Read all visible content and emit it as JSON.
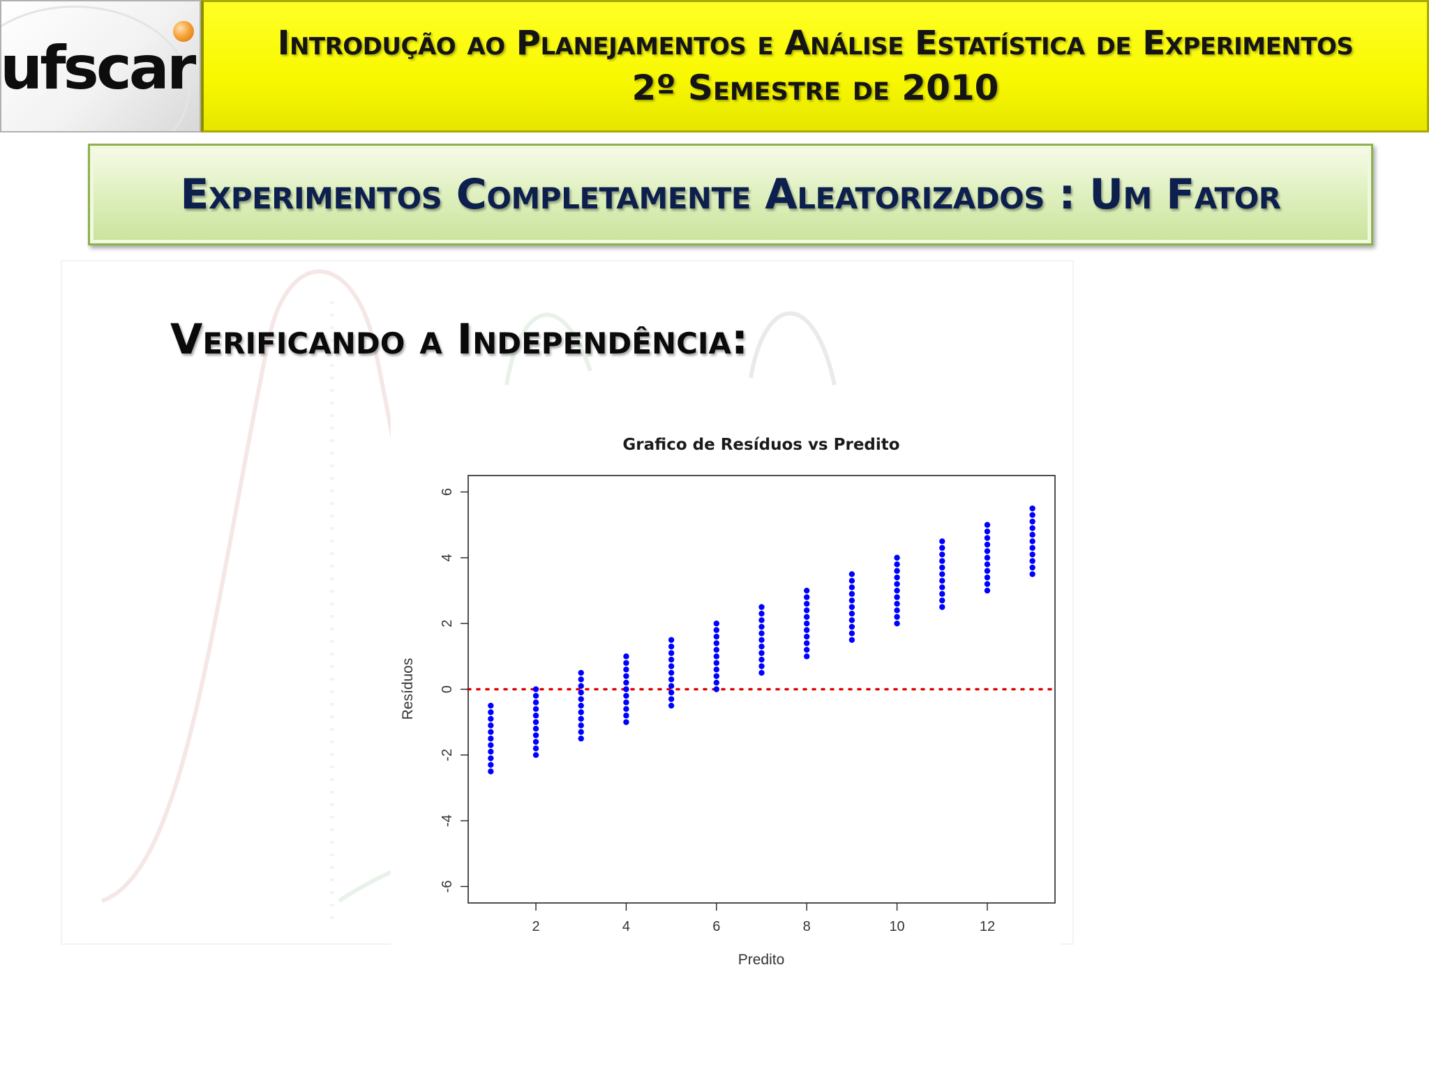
{
  "header": {
    "logo_text": "ufscar",
    "line1": "Introdução ao Planejamentos e Análise Estatística de Experimentos",
    "line2": "2º Semestre de 2010"
  },
  "title_bar": {
    "text": "Experimentos Completamente Aleatorizados : Um Fator"
  },
  "section": {
    "heading": "Verificando a Independência:"
  },
  "colors": {
    "header_yellow": "#ffff00",
    "title_green": "#dcefbd",
    "title_text": "#0c1f4d",
    "points": "#0000ff",
    "zero_line": "#e00000"
  },
  "chart_data": {
    "type": "scatter",
    "title": "Grafico de Resíduos vs Predito",
    "xlabel": "Predito",
    "ylabel": "Resíduos",
    "xlim": [
      0.5,
      13.5
    ],
    "ylim": [
      -6.5,
      6.5
    ],
    "xticks": [
      2,
      4,
      6,
      8,
      10,
      12
    ],
    "yticks": [
      -6,
      -4,
      -2,
      0,
      2,
      4,
      6
    ],
    "reference_line": {
      "y": 0,
      "style": "dotted",
      "color": "#e00000"
    },
    "point_color": "#0000ff",
    "columns": [
      {
        "x": 1,
        "y_min": -2.5,
        "y_max": -0.5
      },
      {
        "x": 2,
        "y_min": -2.0,
        "y_max": 0.0
      },
      {
        "x": 3,
        "y_min": -1.5,
        "y_max": 0.5
      },
      {
        "x": 4,
        "y_min": -1.0,
        "y_max": 1.0
      },
      {
        "x": 5,
        "y_min": -0.5,
        "y_max": 1.5
      },
      {
        "x": 6,
        "y_min": 0.0,
        "y_max": 2.0
      },
      {
        "x": 7,
        "y_min": 0.5,
        "y_max": 2.5
      },
      {
        "x": 8,
        "y_min": 1.0,
        "y_max": 3.0
      },
      {
        "x": 9,
        "y_min": 1.5,
        "y_max": 3.5
      },
      {
        "x": 10,
        "y_min": 2.0,
        "y_max": 4.0
      },
      {
        "x": 11,
        "y_min": 2.5,
        "y_max": 4.5
      },
      {
        "x": 12,
        "y_min": 3.0,
        "y_max": 5.0
      },
      {
        "x": 13,
        "y_min": 3.5,
        "y_max": 5.5
      }
    ],
    "y_step": 0.2
  }
}
